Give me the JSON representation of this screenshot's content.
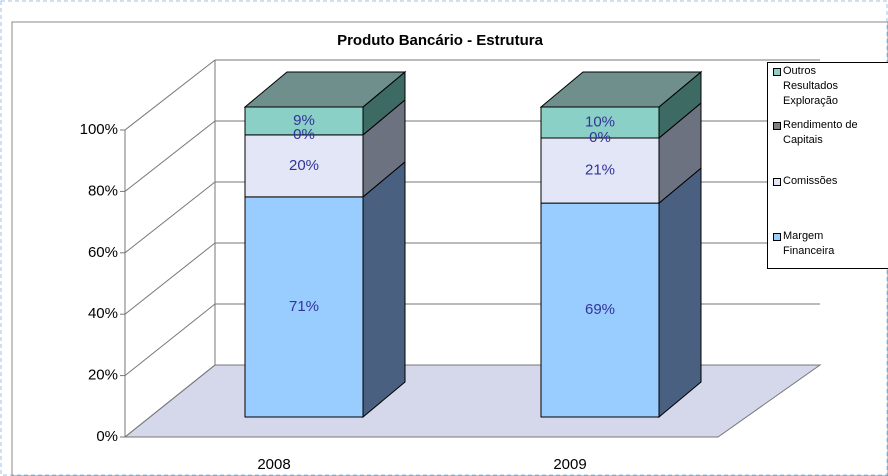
{
  "chart_data": {
    "type": "bar3d_stacked",
    "title": "Produto Bancário - Estrutura",
    "categories": [
      "2008",
      "2009"
    ],
    "series": [
      {
        "name": "Margem Financeira",
        "color": "#99ccff",
        "side": "#4a6080",
        "values": [
          71,
          69
        ],
        "value_labels": [
          "71%",
          "69%"
        ]
      },
      {
        "name": "Comissões",
        "color": "#e2e6f6",
        "side": "#6c7280",
        "values": [
          20,
          21
        ],
        "value_labels": [
          "20%",
          "21%"
        ]
      },
      {
        "name": "Rendimento de Capitais",
        "color": "#808080",
        "side": "#555555",
        "values": [
          0,
          0
        ],
        "value_labels": [
          "0%",
          "0%"
        ]
      },
      {
        "name": "Outros Resultados Exploração",
        "color": "#8ad0c6",
        "side": "#3e6a64",
        "values": [
          9,
          10
        ],
        "value_labels": [
          "9%",
          "10%"
        ]
      }
    ],
    "ylim": [
      0,
      100
    ],
    "yticks": [
      {
        "value": 0,
        "label": "0%"
      },
      {
        "value": 20,
        "label": "20%"
      },
      {
        "value": 40,
        "label": "40%"
      },
      {
        "value": 60,
        "label": "60%"
      },
      {
        "value": 80,
        "label": "80%"
      },
      {
        "value": 100,
        "label": "100%"
      }
    ],
    "grid": true,
    "legend": "right"
  }
}
